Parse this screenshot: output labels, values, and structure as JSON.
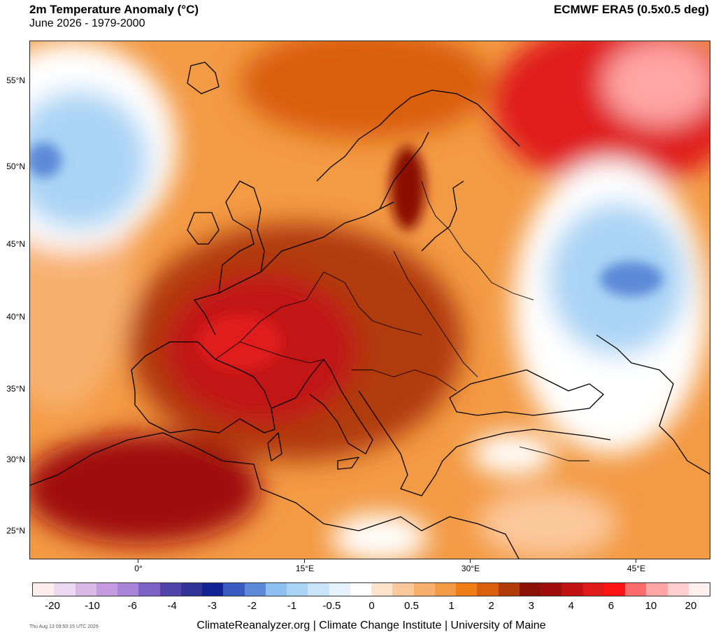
{
  "header": {
    "title": "2m Temperature Anomaly (°C)",
    "subtitle": "June 2026 - 1979-2000",
    "source": "ECMWF ERA5 (0.5x0.5 deg)"
  },
  "map": {
    "lat_labels": [
      "55°N",
      "50°N",
      "45°N",
      "40°N",
      "35°N",
      "30°N",
      "25°N"
    ],
    "lon_labels": [
      "0°",
      "15°E",
      "30°E",
      "45°E"
    ]
  },
  "colorbar": {
    "colors": [
      "#fdeeee",
      "#ead9f0",
      "#d9b8e6",
      "#c59ae0",
      "#a983d8",
      "#7e62c6",
      "#5044aa",
      "#2f3395",
      "#112295",
      "#3a5bbf",
      "#5c8ad8",
      "#8fc0f2",
      "#aad4f5",
      "#c9e3f7",
      "#e6f2fb",
      "#ffffff",
      "#fde3cc",
      "#fbc89c",
      "#f8b06e",
      "#f39a44",
      "#f07e17",
      "#d95f0e",
      "#b03a08",
      "#8b1106",
      "#a00d0d",
      "#c21213",
      "#e01b1b",
      "#ff1414",
      "#ff6a6a",
      "#ffa5a5",
      "#ffcfcf",
      "#fff0f0"
    ],
    "labels": [
      "-20",
      "-10",
      "-6",
      "-4",
      "-3",
      "-2",
      "-1",
      "-0.5",
      "0",
      "0.5",
      "1",
      "2",
      "3",
      "4",
      "6",
      "10",
      "20"
    ]
  },
  "footer": {
    "timestamp": "Thu Aug 13 09:50:15 UTC 2026",
    "credit": "ClimateReanalyzer.org | Climate Change Institute | University of Maine"
  }
}
